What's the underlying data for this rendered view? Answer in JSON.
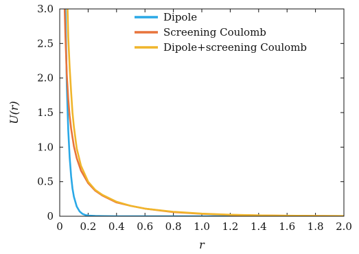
{
  "chart_data": {
    "type": "line",
    "xlabel": "r",
    "ylabel": "U(r)",
    "xlim": [
      0,
      2.0
    ],
    "ylim": [
      0,
      3.0
    ],
    "x_ticks": [
      "0",
      "0.2",
      "0.4",
      "0.6",
      "0.8",
      "1.0",
      "1.2",
      "1.4",
      "1.6",
      "1.8",
      "2.0"
    ],
    "y_ticks": [
      "0",
      "0.5",
      "1.0",
      "1.5",
      "2.0",
      "2.5",
      "3.0"
    ],
    "grid": false,
    "legend_position": "top-right",
    "series": [
      {
        "name": "Dipole",
        "color": "#2aa8e6",
        "x": [
          0.04,
          0.05,
          0.06,
          0.07,
          0.08,
          0.09,
          0.1,
          0.12,
          0.14,
          0.16,
          0.18,
          0.2,
          0.25,
          0.3,
          0.4,
          0.6,
          1.0,
          2.0
        ],
        "y": [
          3.0,
          1.9,
          1.25,
          0.85,
          0.58,
          0.4,
          0.28,
          0.14,
          0.07,
          0.035,
          0.018,
          0.01,
          0.004,
          0.002,
          0.0,
          0.0,
          0.0,
          0.0
        ]
      },
      {
        "name": "Screening Coulomb",
        "color": "#e8743b",
        "x": [
          0.035,
          0.04,
          0.05,
          0.06,
          0.07,
          0.08,
          0.1,
          0.12,
          0.15,
          0.2,
          0.25,
          0.3,
          0.4,
          0.5,
          0.6,
          0.8,
          1.0,
          1.2,
          1.4,
          1.6,
          1.8,
          2.0
        ],
        "y": [
          3.0,
          2.6,
          2.05,
          1.7,
          1.45,
          1.27,
          1.01,
          0.84,
          0.66,
          0.48,
          0.37,
          0.3,
          0.2,
          0.15,
          0.11,
          0.06,
          0.035,
          0.02,
          0.012,
          0.007,
          0.004,
          0.002
        ]
      },
      {
        "name": "Dipole+screening Coulomb",
        "color": "#f0b52b",
        "x": [
          0.055,
          0.06,
          0.07,
          0.08,
          0.09,
          0.1,
          0.12,
          0.15,
          0.2,
          0.25,
          0.3,
          0.4,
          0.5,
          0.6,
          0.8,
          1.0,
          1.2,
          1.4,
          1.6,
          1.8,
          2.0
        ],
        "y": [
          3.0,
          2.6,
          2.15,
          1.8,
          1.5,
          1.29,
          0.98,
          0.73,
          0.5,
          0.38,
          0.31,
          0.21,
          0.15,
          0.11,
          0.065,
          0.038,
          0.022,
          0.013,
          0.008,
          0.005,
          0.003
        ]
      }
    ]
  }
}
